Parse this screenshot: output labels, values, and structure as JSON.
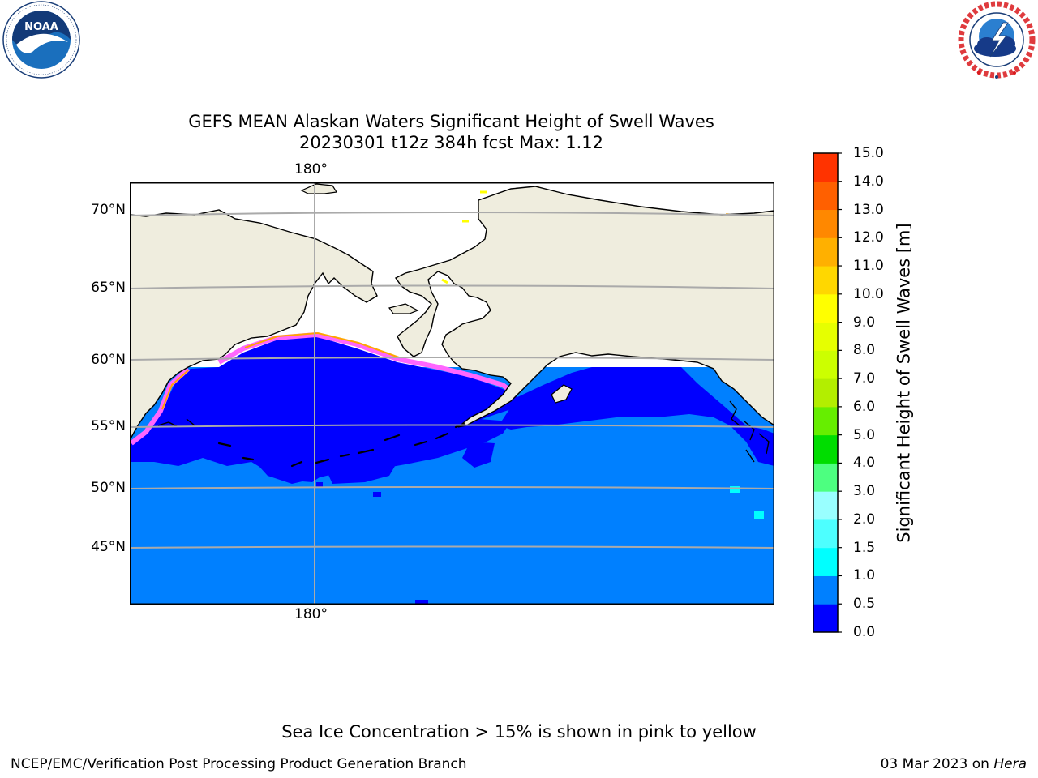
{
  "logos": {
    "left": {
      "name": "NOAA",
      "ring_text": "NATIONAL OCEANIC AND ATMOSPHERIC ADMINISTRATION · U.S. DEPARTMENT OF COMMERCE"
    },
    "right": {
      "ring_text": "NATIONAL WEATHER SERVICE"
    }
  },
  "title": {
    "line1": "GEFS MEAN Alaskan Waters Significant Height of Swell Waves",
    "line2": "20230301 t12z 384h fcst   Max: 1.12"
  },
  "map": {
    "lon_label_top": "180°",
    "lon_label_bottom": "180°",
    "lat_labels": [
      {
        "value": 70,
        "text": "70°N"
      },
      {
        "value": 65,
        "text": "65°N"
      },
      {
        "value": 60,
        "text": "60°N"
      },
      {
        "value": 55,
        "text": "55°N"
      },
      {
        "value": 50,
        "text": "50°N"
      },
      {
        "value": 45,
        "text": "45°N"
      }
    ],
    "colors": {
      "land": "#efedde",
      "ocean_low": "#0000ff",
      "ocean_mid": "#0080ff",
      "grid": "#aaaaaa",
      "ice_pink": "#ff66ff",
      "ice_orange": "#ffa500",
      "ice_yellow": "#ffff00"
    }
  },
  "colorbar": {
    "title": "Significant Height of Swell Waves [m]",
    "ticks": [
      "0.0",
      "0.5",
      "1.0",
      "1.5",
      "2.0",
      "3.0",
      "4.0",
      "5.0",
      "6.0",
      "7.0",
      "8.0",
      "9.0",
      "10.0",
      "11.0",
      "12.0",
      "13.0",
      "14.0",
      "15.0"
    ],
    "colors": [
      "#0000ff",
      "#0080ff",
      "#00ffff",
      "#4dffff",
      "#99ffff",
      "#4dff80",
      "#00dd00",
      "#66ee00",
      "#b3ee00",
      "#ccff00",
      "#e6ff00",
      "#ffff00",
      "#ffd700",
      "#ffb000",
      "#ff8800",
      "#ff6000",
      "#ff3300"
    ]
  },
  "chart_data": {
    "type": "heatmap",
    "title": "GEFS MEAN Alaskan Waters Significant Height of Swell Waves",
    "subtitle": "20230301 t12z 384h fcst   Max: 1.12",
    "max_value": 1.12,
    "units": "m",
    "ylabel": "Significant Height of Swell Waves [m]",
    "colorbar_range": [
      0.0,
      15.0
    ]
  },
  "footer": {
    "note": "Sea Ice Concentration > 15% is shown in pink to yellow",
    "left": "NCEP/EMC/Verification Post Processing Product Generation Branch",
    "date": "03 Mar 2023 on ",
    "host": "Hera"
  }
}
